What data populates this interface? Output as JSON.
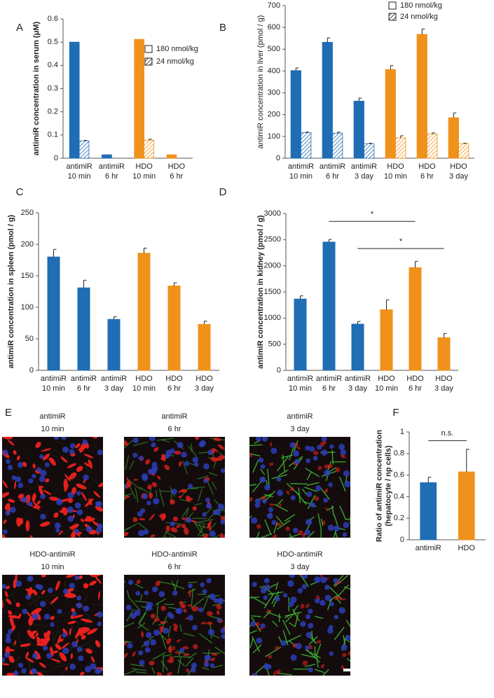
{
  "chart_data": [
    {
      "type": "bar",
      "panel_label": "A",
      "ylabel": "antimiR concentration in serum (μM)",
      "categories": [
        [
          "antimiR",
          "10 min"
        ],
        [
          "antimiR",
          "6 hr"
        ],
        [
          "HDO",
          "10 min"
        ],
        [
          "HDO",
          "6 hr"
        ]
      ],
      "category_colors": [
        "#1f6db4",
        "#1f6db4",
        "#f0911c",
        "#f0911c"
      ],
      "series": [
        {
          "name": "180 nmol/kg",
          "pattern": "solid",
          "values": [
            0.5,
            0.015,
            0.512,
            0.015
          ],
          "errors": [
            null,
            null,
            null,
            null
          ]
        },
        {
          "name": "24 nmol/kg",
          "pattern": "hatch",
          "values": [
            0.075,
            null,
            0.078,
            null
          ],
          "errors": [
            0.002,
            null,
            0.004,
            null
          ]
        }
      ],
      "ylim": [
        0,
        0.6
      ],
      "yticks": [
        0,
        0.1,
        0.2,
        0.3,
        0.4,
        0.5,
        0.6
      ],
      "legend": "right"
    },
    {
      "type": "bar",
      "panel_label": "B",
      "ylabel": "antimiR concentration in liver (pmol / g)",
      "categories": [
        [
          "antimiR",
          "10 min"
        ],
        [
          "antimiR",
          "6 hr"
        ],
        [
          "antimiR",
          "3 day"
        ],
        [
          "HDO",
          "10 min"
        ],
        [
          "HDO",
          "6 hr"
        ],
        [
          "HDO",
          "3 day"
        ]
      ],
      "category_colors": [
        "#1f6db4",
        "#1f6db4",
        "#1f6db4",
        "#f0911c",
        "#f0911c",
        "#f0911c"
      ],
      "series": [
        {
          "name": "180 nmol/kg",
          "pattern": "solid",
          "values": [
            402,
            532,
            262,
            407,
            568,
            186
          ],
          "errors": [
            12,
            20,
            14,
            18,
            25,
            22
          ]
        },
        {
          "name": "24 nmol/kg",
          "pattern": "hatch",
          "values": [
            117,
            115,
            67,
            93,
            112,
            67
          ],
          "errors": [
            3,
            5,
            2,
            10,
            4,
            2
          ]
        }
      ],
      "ylim": [
        0,
        700
      ],
      "yticks": [
        0,
        100,
        200,
        300,
        400,
        500,
        600,
        700
      ],
      "legend": "upper right"
    },
    {
      "type": "bar",
      "panel_label": "C",
      "ylabel": "antimiR concentration in spleen (pmol / g)",
      "categories": [
        [
          "antimiR",
          "10 min"
        ],
        [
          "antimiR",
          "6 hr"
        ],
        [
          "antimiR",
          "3 day"
        ],
        [
          "HDO",
          "10 min"
        ],
        [
          "HDO",
          "6 hr"
        ],
        [
          "HDO",
          "3 day"
        ]
      ],
      "category_colors": [
        "#1f6db4",
        "#1f6db4",
        "#1f6db4",
        "#f0911c",
        "#f0911c",
        "#f0911c"
      ],
      "values": [
        180,
        131,
        81,
        186,
        134,
        73
      ],
      "errors": [
        12,
        12,
        4,
        8,
        5,
        5
      ],
      "ylim": [
        0,
        250
      ],
      "yticks": [
        0,
        50,
        100,
        150,
        200,
        250
      ]
    },
    {
      "type": "bar",
      "panel_label": "D",
      "ylabel": "antimiR concentration in kidney (pmol / g)",
      "categories": [
        [
          "antimiR",
          "10 min"
        ],
        [
          "antimiR",
          "6 hr"
        ],
        [
          "antimiR",
          "3 day"
        ],
        [
          "HDO",
          "10 min"
        ],
        [
          "HDO",
          "6 hr"
        ],
        [
          "HDO",
          "3 day"
        ]
      ],
      "category_colors": [
        "#1f6db4",
        "#1f6db4",
        "#1f6db4",
        "#f0911c",
        "#f0911c",
        "#f0911c"
      ],
      "values": [
        1365,
        2455,
        885,
        1160,
        1965,
        625
      ],
      "errors": [
        60,
        50,
        50,
        190,
        120,
        80
      ],
      "ylim": [
        0,
        3000
      ],
      "yticks": [
        0,
        500,
        1000,
        1500,
        2000,
        2500,
        3000
      ],
      "annotations": [
        {
          "text": "*",
          "from": 1,
          "to": 4,
          "y": 2850
        },
        {
          "text": "*",
          "from": 2,
          "to": 5,
          "y": 2330
        }
      ]
    },
    {
      "type": "bar",
      "panel_label": "F",
      "ylabel": [
        "Ratio of antimiR concentration",
        "(hepatocyte / np cells)"
      ],
      "categories": [
        [
          "antimiR"
        ],
        [
          "HDO"
        ]
      ],
      "category_colors": [
        "#1f6db4",
        "#f0911c"
      ],
      "values": [
        0.53,
        0.63
      ],
      "errors": [
        0.05,
        0.21
      ],
      "ylim": [
        0,
        1
      ],
      "yticks": [
        0,
        0.2,
        0.4,
        0.6,
        0.8,
        1
      ],
      "annotations": [
        {
          "text": "n.s.",
          "from": 0,
          "to": 1,
          "y": 0.92
        }
      ]
    }
  ],
  "images": {
    "panel_label": "E",
    "rows": [
      [
        {
          "title": "antimiR",
          "time": "10 min"
        },
        {
          "title": "antimiR",
          "time": "6 hr"
        },
        {
          "title": "antimiR",
          "time": "3 day"
        }
      ],
      [
        {
          "title": "HDO-antimiR",
          "time": "10 min"
        },
        {
          "title": "HDO-antimiR",
          "time": "6 hr"
        },
        {
          "title": "HDO-antimiR",
          "time": "3 day"
        }
      ]
    ]
  }
}
